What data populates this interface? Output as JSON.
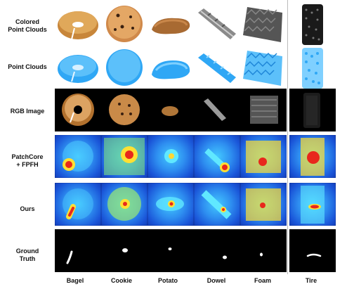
{
  "rows": {
    "colored": "Colored\nPoint Clouds",
    "points": "Point Clouds",
    "rgb": "RGB Image",
    "patchcore": "PatchCore\n+ FPFH",
    "ours": "Ours",
    "gt": "Ground\nTruth"
  },
  "columns": [
    "Bagel",
    "Cookie",
    "Potato",
    "Dowel",
    "Foam",
    "Tire"
  ],
  "colors": {
    "point_cloud_blue": "#2fa7f5",
    "heatmap_hot": "#e8281c",
    "heatmap_cool": "#1a55d8",
    "background_black": "#000000"
  }
}
